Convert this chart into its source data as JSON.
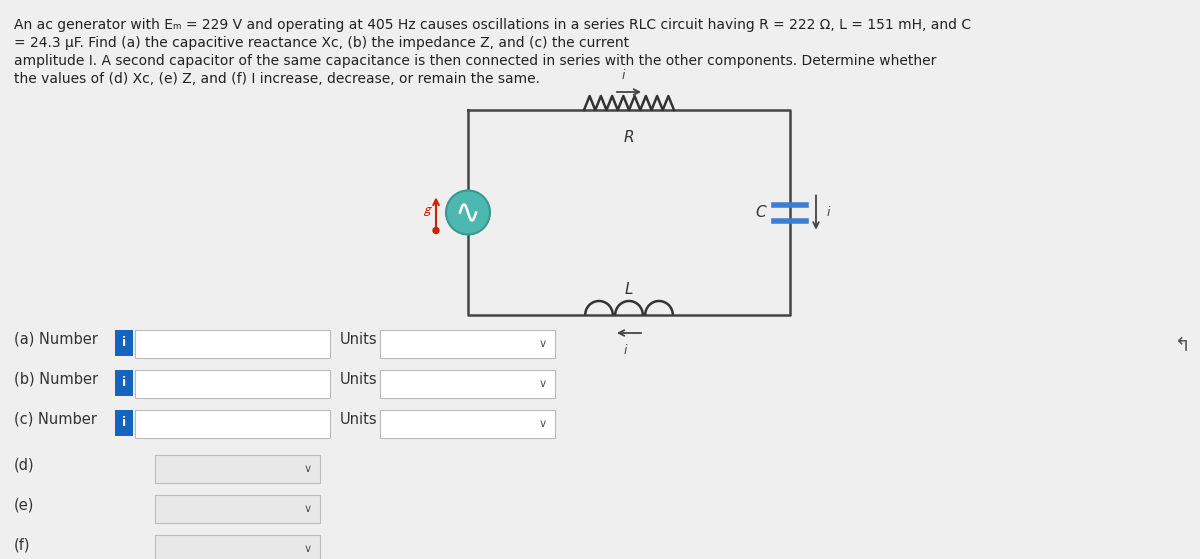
{
  "bg_color": "#efefef",
  "title_lines": [
    "An ac generator with Eₘ = 229 V and operating at 405 Hz causes oscillations in a series RLC circuit having R = 222 Ω, L = 151 mH, and C",
    "= 24.3 μF. Find (a) the capacitive reactance Xᴄ, (b) the impedance Z, and (c) the current",
    "amplitude I. A second capacitor of the same capacitance is then connected in series with the other components. Determine whether",
    "the values of (d) Xᴄ, (e) Z, and (f) I increase, decrease, or remain the same."
  ],
  "text_fontsize": 10.0,
  "label_fontsize": 10.5,
  "info_badge_color": "#1565c0",
  "info_badge_text": "i",
  "input_box_color": "#ffffff",
  "input_box_border": "#bbbbbb",
  "dropdown_box_color": "#e8e8e8",
  "dropdown_box_border": "#bbbbbb",
  "circuit_line_color": "#444444",
  "resistor_color": "#333333",
  "inductor_color": "#333333",
  "capacitor_color": "#3a7fd5",
  "generator_fill": "#4db8b0",
  "generator_outline": "#3a9990",
  "generator_sine_color": "#ffffff",
  "arrow_red_color": "#cc2200",
  "current_arrow_color": "#444444",
  "label_italic_color": "#333333",
  "row_labels_abc": [
    "(a) Number",
    "(b) Number",
    "(c) Number"
  ],
  "row_labels_def": [
    "(d)",
    "(e)",
    "(f)"
  ],
  "units_label": "Units",
  "cursor_color": "#555555"
}
